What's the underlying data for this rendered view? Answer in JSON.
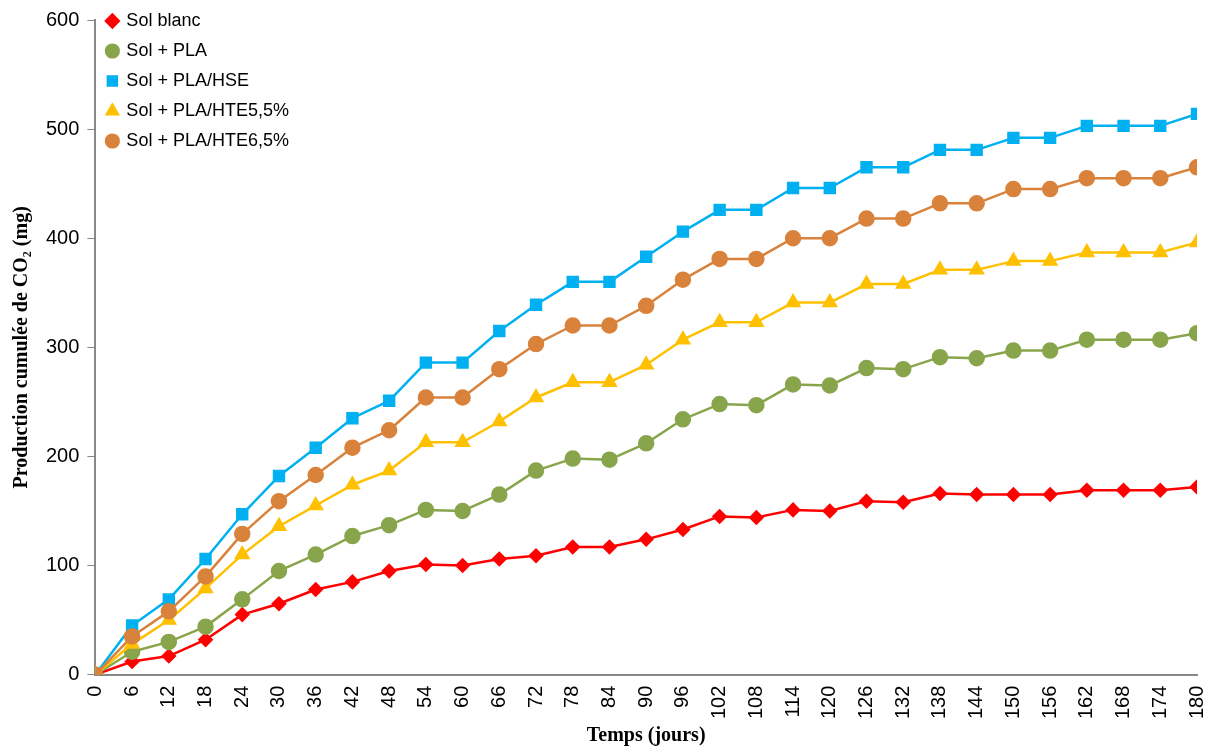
{
  "chart_data": {
    "type": "line",
    "xlabel": "Temps (jours)",
    "ylabel": "Production cumulée de CO₂ (mg)",
    "x": [
      0,
      6,
      12,
      18,
      24,
      30,
      36,
      42,
      48,
      54,
      60,
      66,
      72,
      78,
      84,
      90,
      96,
      102,
      108,
      114,
      120,
      126,
      132,
      138,
      144,
      150,
      156,
      162,
      168,
      174,
      180
    ],
    "xlim": [
      0,
      180
    ],
    "xticks": [
      0,
      6,
      12,
      18,
      24,
      30,
      36,
      42,
      48,
      54,
      60,
      66,
      72,
      78,
      84,
      90,
      96,
      102,
      108,
      114,
      120,
      126,
      132,
      138,
      144,
      150,
      156,
      162,
      168,
      174,
      180
    ],
    "ylim": [
      0,
      600
    ],
    "yticks": [
      0,
      100,
      200,
      300,
      400,
      500,
      600
    ],
    "grid": false,
    "legend": "top left",
    "line_style": "solid",
    "series": [
      {
        "name": "Sol blanc",
        "color": "#ff0000",
        "marker": "diamond",
        "values": [
          0,
          12,
          17,
          32,
          55,
          65,
          78,
          85,
          95,
          101,
          100,
          106,
          109,
          117,
          117,
          124,
          133,
          145,
          144,
          151,
          150,
          159,
          158,
          166,
          165,
          165,
          165,
          169,
          169,
          169,
          172
        ]
      },
      {
        "name": "Sol + PLA",
        "color": "#88a54c",
        "marker": "circle",
        "values": [
          0,
          21,
          30,
          44,
          69,
          95,
          110,
          127,
          137,
          151,
          150,
          165,
          187,
          198,
          197,
          212,
          234,
          248,
          247,
          266,
          265,
          281,
          280,
          291,
          290,
          297,
          297,
          307,
          307,
          307,
          313
        ]
      },
      {
        "name": "Sol + PLA/HSE",
        "color": "#00b0f0",
        "marker": "square",
        "values": [
          0,
          45,
          69,
          106,
          147,
          182,
          208,
          235,
          251,
          286,
          286,
          315,
          339,
          360,
          360,
          383,
          406,
          426,
          426,
          446,
          446,
          465,
          465,
          481,
          481,
          492,
          492,
          503,
          503,
          503,
          514
        ]
      },
      {
        "name": "Sol + PLA/HTE5,5%",
        "color": "#ffc000",
        "marker": "triangle",
        "values": [
          0,
          28,
          50,
          79,
          110,
          136,
          155,
          174,
          187,
          213,
          213,
          232,
          254,
          268,
          268,
          284,
          307,
          323,
          323,
          341,
          341,
          358,
          358,
          371,
          371,
          379,
          379,
          387,
          387,
          387,
          396
        ]
      },
      {
        "name": "Sol + PLA/HTE6,5%",
        "color": "#d9823b",
        "marker": "circle",
        "values": [
          0,
          35,
          58,
          90,
          129,
          159,
          183,
          208,
          224,
          254,
          254,
          280,
          303,
          320,
          320,
          338,
          362,
          381,
          381,
          400,
          400,
          418,
          418,
          432,
          432,
          445,
          445,
          455,
          455,
          455,
          465
        ]
      }
    ]
  }
}
